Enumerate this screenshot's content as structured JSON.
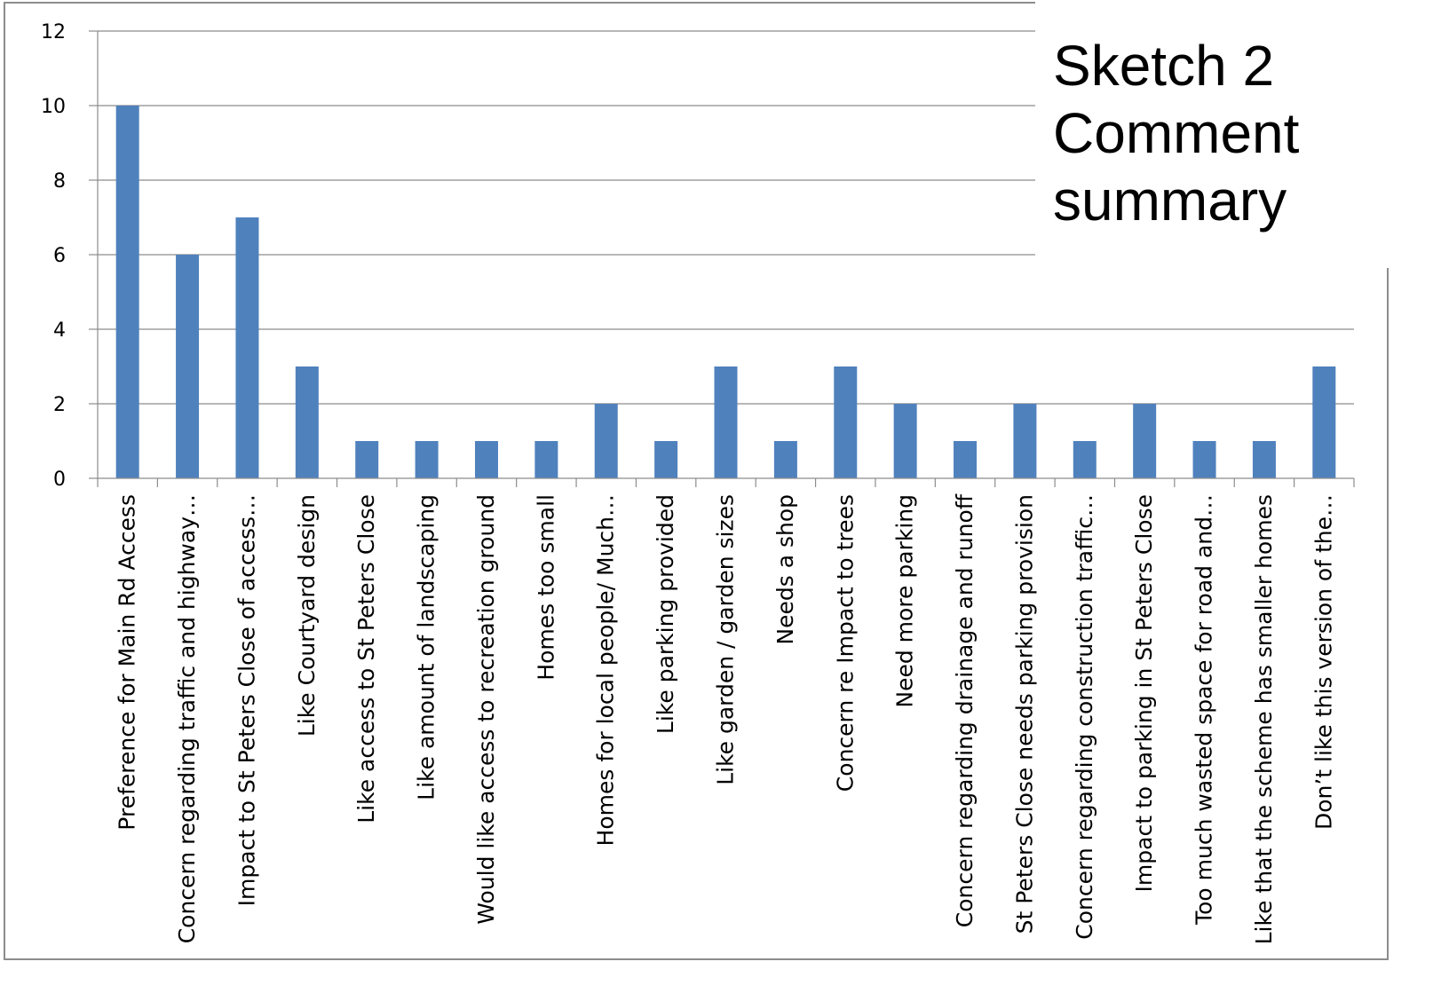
{
  "title_lines": [
    "Sketch 2",
    "Comment",
    "summary"
  ],
  "chart_data": {
    "type": "bar",
    "title": "Sketch 2 Comment summary",
    "categories": [
      "Preference for Main Rd Access",
      "Concern regarding traffic and highway…",
      "Impact to St Peters Close of access…",
      "Like Courtyard design",
      "Like access to St Peters Close",
      "Like amount of landscaping",
      "Would like access to recreation ground",
      "Homes too small",
      "Homes for local people/ Much…",
      "Like parking provided",
      "Like garden / garden sizes",
      "Needs a shop",
      "Concern re Impact to trees",
      "Need more parking",
      "Concern regarding drainage and runoff",
      "St Peters Close needs parking provision",
      "Concern regarding construction traffic…",
      "Impact to parking in St Peters Close",
      "Too much wasted space for road and…",
      "Like that the scheme has smaller homes",
      "Don’t like this version of the…"
    ],
    "values": [
      10,
      6,
      7,
      3,
      1,
      1,
      1,
      1,
      2,
      1,
      3,
      1,
      3,
      2,
      1,
      2,
      1,
      2,
      1,
      1,
      3
    ],
    "yticks": [
      0,
      2,
      4,
      6,
      8,
      10,
      12
    ],
    "ylim": [
      0,
      12
    ],
    "grid": true,
    "legend": "none",
    "bar_color": "#4f81bd",
    "grid_color": "#8c8c8c"
  }
}
